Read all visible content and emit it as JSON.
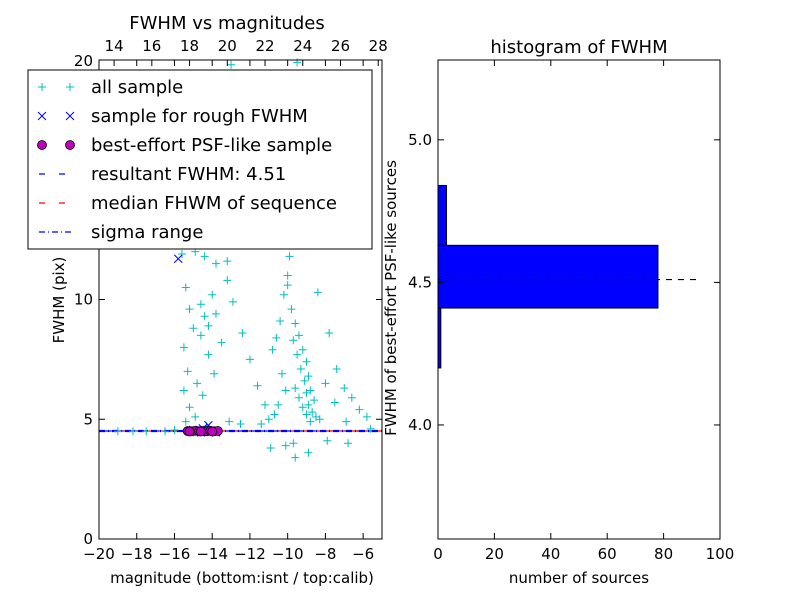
{
  "chart_data": [
    {
      "type": "scatter",
      "title": "FWHM vs magnitudes",
      "xlabel": "magnitude (bottom:isnt / top:calib)",
      "ylabel": "FWHM (pix)",
      "xlim": [
        -20,
        -5
      ],
      "ylim": [
        0,
        20
      ],
      "xlim_top": [
        13.2,
        28.2
      ],
      "xticks": [
        "−20",
        "−18",
        "−16",
        "−14",
        "−12",
        "−10",
        "−8",
        "−6"
      ],
      "xtick_values": [
        -20,
        -18,
        -16,
        -14,
        -12,
        -10,
        -8,
        -6
      ],
      "xticks_top": [
        "14",
        "16",
        "18",
        "20",
        "22",
        "24",
        "26",
        "28"
      ],
      "xtick_top_values": [
        14,
        16,
        18,
        20,
        22,
        24,
        26,
        28
      ],
      "yticks": [
        "0",
        "5",
        "10"
      ],
      "ytick_values": [
        0,
        5,
        10
      ],
      "ytick_top_label": "20",
      "resultant_fwhm": 4.51,
      "median_fwhm": 4.51,
      "sigma_range": [
        4.49,
        4.53
      ],
      "series": [
        {
          "name": "all sample",
          "marker": "+",
          "color": "#00BFBF",
          "points": [
            [
              -15.6,
              11.9
            ],
            [
              -14.9,
              12.0
            ],
            [
              -14.4,
              11.8
            ],
            [
              -13.8,
              11.5
            ],
            [
              -13.2,
              11.6
            ],
            [
              -15.4,
              10.5
            ],
            [
              -15.2,
              9.6
            ],
            [
              -15.0,
              8.8
            ],
            [
              -15.5,
              8.0
            ],
            [
              -15.3,
              7.0
            ],
            [
              -15.5,
              6.2
            ],
            [
              -15.2,
              5.5
            ],
            [
              -15.4,
              4.9
            ],
            [
              -14.9,
              5.1
            ],
            [
              -14.6,
              9.8
            ],
            [
              -14.4,
              9.3
            ],
            [
              -14.2,
              8.9
            ],
            [
              -14.6,
              8.5
            ],
            [
              -14.2,
              7.7
            ],
            [
              -13.9,
              6.9
            ],
            [
              -14.8,
              6.5
            ],
            [
              -14.5,
              6.0
            ],
            [
              -14.0,
              10.2
            ],
            [
              -13.8,
              9.4
            ],
            [
              -13.5,
              8.2
            ],
            [
              -13.2,
              10.8
            ],
            [
              -12.9,
              9.9
            ],
            [
              -12.4,
              8.6
            ],
            [
              -12.0,
              7.5
            ],
            [
              -11.6,
              6.4
            ],
            [
              -11.2,
              5.6
            ],
            [
              -10.8,
              7.9
            ],
            [
              -10.6,
              8.4
            ],
            [
              -10.4,
              9.1
            ],
            [
              -10.2,
              10.2
            ],
            [
              -10.0,
              11.0
            ],
            [
              -9.9,
              11.8
            ],
            [
              -10.0,
              10.6
            ],
            [
              -9.8,
              9.6
            ],
            [
              -9.6,
              9.0
            ],
            [
              -9.4,
              8.5
            ],
            [
              -9.2,
              7.9
            ],
            [
              -9.0,
              7.4
            ],
            [
              -8.9,
              6.8
            ],
            [
              -8.8,
              6.2
            ],
            [
              -8.6,
              5.8
            ],
            [
              -9.7,
              8.3
            ],
            [
              -9.5,
              7.7
            ],
            [
              -9.3,
              7.1
            ],
            [
              -9.1,
              6.6
            ],
            [
              -9.0,
              6.1
            ],
            [
              -8.9,
              5.6
            ],
            [
              -8.7,
              5.3
            ],
            [
              -8.5,
              5.1
            ],
            [
              -8.3,
              5.0
            ],
            [
              -9.6,
              6.3
            ],
            [
              -9.4,
              5.9
            ],
            [
              -9.2,
              5.5
            ],
            [
              -9.0,
              5.2
            ],
            [
              -8.8,
              4.9
            ],
            [
              -10.3,
              6.9
            ],
            [
              -10.1,
              6.2
            ],
            [
              -10.5,
              5.6
            ],
            [
              -10.7,
              5.2
            ],
            [
              -11.0,
              5.0
            ],
            [
              -9.8,
              12.5
            ],
            [
              -9.6,
              13.0
            ],
            [
              -10.1,
              12.4
            ],
            [
              -10.3,
              13.4
            ],
            [
              -10.6,
              12.9
            ],
            [
              -12.2,
              12.3
            ],
            [
              -11.7,
              13.6
            ],
            [
              -12.8,
              14.0
            ],
            [
              -13.3,
              12.8
            ],
            [
              -11.2,
              14.4
            ],
            [
              -9.5,
              19.9
            ],
            [
              -13.0,
              19.8
            ],
            [
              -8.4,
              10.3
            ],
            [
              -7.8,
              8.6
            ],
            [
              -7.4,
              7.1
            ],
            [
              -7.0,
              6.3
            ],
            [
              -6.6,
              5.9
            ],
            [
              -6.2,
              5.4
            ],
            [
              -5.8,
              5.1
            ],
            [
              -6.9,
              4.9
            ],
            [
              -7.5,
              5.7
            ],
            [
              -8.0,
              6.5
            ],
            [
              -9.7,
              4.0
            ],
            [
              -10.1,
              3.9
            ],
            [
              -9.6,
              3.4
            ],
            [
              -10.9,
              3.8
            ],
            [
              -8.9,
              3.6
            ],
            [
              -7.9,
              4.1
            ],
            [
              -6.8,
              4.0
            ],
            [
              -5.6,
              4.6
            ],
            [
              -12.5,
              4.8
            ],
            [
              -11.4,
              4.8
            ],
            [
              -13.1,
              4.9
            ],
            [
              -14.3,
              4.7
            ],
            [
              -16.5,
              4.5
            ],
            [
              -17.5,
              4.5
            ],
            [
              -19.0,
              4.5
            ],
            [
              -18.2,
              4.5
            ],
            [
              -16.0,
              4.55
            ],
            [
              -15.0,
              4.45
            ]
          ]
        },
        {
          "name": "sample for rough FWHM",
          "marker": "x",
          "color": "#0000FF",
          "points": [
            [
              -15.8,
              11.7
            ],
            [
              -14.2,
              4.75
            ],
            [
              -14.4,
              4.55
            ],
            [
              -14.6,
              4.45
            ],
            [
              -14.0,
              4.5
            ],
            [
              -14.8,
              4.5
            ],
            [
              -15.0,
              4.55
            ],
            [
              -13.8,
              4.45
            ],
            [
              -14.5,
              4.62
            ]
          ]
        },
        {
          "name": "best-effort PSF-like sample",
          "marker": "o",
          "color": "#BF00BF",
          "points": [
            [
              -15.3,
              4.51
            ],
            [
              -15.1,
              4.5
            ],
            [
              -14.9,
              4.52
            ],
            [
              -14.7,
              4.5
            ],
            [
              -14.5,
              4.51
            ],
            [
              -14.3,
              4.5
            ],
            [
              -14.1,
              4.52
            ],
            [
              -13.9,
              4.5
            ],
            [
              -13.7,
              4.51
            ],
            [
              -15.2,
              4.49
            ],
            [
              -14.6,
              4.49
            ],
            [
              -14.0,
              4.49
            ]
          ]
        }
      ],
      "legend": {
        "position": "upper-left",
        "entries": [
          {
            "label": "all sample",
            "style": "+",
            "color": "#00BFBF"
          },
          {
            "label": "sample for rough FWHM",
            "style": "x",
            "color": "#0000FF"
          },
          {
            "label": "best-effort PSF-like sample",
            "style": "o",
            "color": "#BF00BF"
          },
          {
            "label": "resultant FWHM: 4.51",
            "style": "dashed",
            "color": "#0000FF"
          },
          {
            "label": "median FHWM of sequence",
            "style": "dashed",
            "color": "#FF0000"
          },
          {
            "label": "sigma range",
            "style": "dashdot",
            "color": "#0000FF"
          }
        ]
      }
    },
    {
      "type": "bar",
      "orientation": "horizontal",
      "title": "histogram of FWHM",
      "xlabel": "number of sources",
      "ylabel": "FWHM of best-effort PSF-like sources",
      "xlim": [
        0,
        100
      ],
      "ylim": [
        3.6,
        5.28
      ],
      "xticks": [
        "0",
        "20",
        "40",
        "60",
        "80",
        "100"
      ],
      "xtick_values": [
        0,
        20,
        40,
        60,
        80,
        100
      ],
      "yticks": [
        "4.0",
        "4.5",
        "5.0"
      ],
      "ytick_values": [
        4.0,
        4.5,
        5.0
      ],
      "bar_color": "#0000FF",
      "bins": [
        {
          "from": 4.2,
          "to": 4.41,
          "count": 1
        },
        {
          "from": 4.41,
          "to": 4.63,
          "count": 78
        },
        {
          "from": 4.63,
          "to": 4.84,
          "count": 3
        }
      ],
      "reference_line": {
        "value": 4.51,
        "style": "dashed",
        "color": "#000000"
      }
    }
  ]
}
